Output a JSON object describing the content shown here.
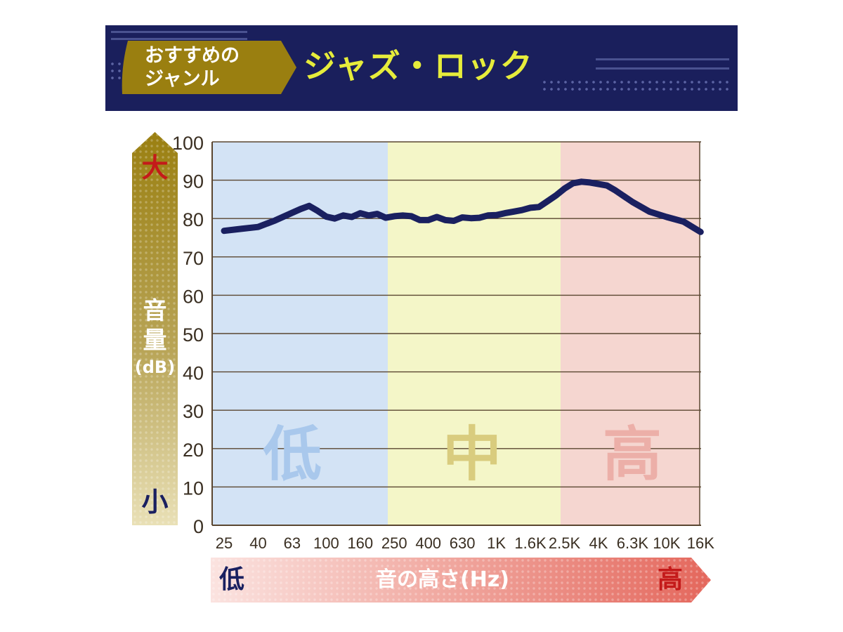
{
  "header": {
    "tag_line1": "おすすめの",
    "tag_line2": "ジャンル",
    "genre": "ジャズ・ロック"
  },
  "colors": {
    "banner": "#1a1f5c",
    "tag_gold": "#9a7f10",
    "genre_text": "#e6ec3b",
    "curve": "#1a2060",
    "band_low": "#d3e3f5",
    "band_mid": "#f4f6c8",
    "band_high": "#f5d6d0",
    "band_label_low": "#a9c8ec",
    "band_label_mid": "#d9cc7e",
    "band_label_high": "#ecafa8",
    "red_mark": "#c41a1a"
  },
  "y_axis": {
    "label": "音量",
    "unit": "(dB)",
    "top_marker": "大",
    "bottom_marker": "小"
  },
  "x_axis": {
    "label": "音の高さ(Hz)",
    "left_marker": "低",
    "right_marker": "高"
  },
  "chart_data": {
    "type": "line",
    "title": "",
    "xlabel": "音の高さ(Hz)",
    "ylabel": "音量(dB)",
    "ylim": [
      0,
      100
    ],
    "yticks": [
      0,
      10,
      20,
      30,
      40,
      50,
      60,
      70,
      80,
      90,
      100
    ],
    "grid": true,
    "categories": [
      "25",
      "40",
      "63",
      "100",
      "160",
      "250",
      "400",
      "630",
      "1K",
      "1.6K",
      "2.5K",
      "4K",
      "6.3K",
      "10K",
      "16K"
    ],
    "bands": [
      {
        "label": "低",
        "from": "25",
        "to": "250"
      },
      {
        "label": "中",
        "from": "250",
        "to": "2.5K"
      },
      {
        "label": "高",
        "from": "2.5K",
        "to": "16K"
      }
    ],
    "series": [
      {
        "x": [
          0,
          0.5,
          1,
          1.5,
          2,
          2.25,
          2.5,
          2.75,
          3,
          3.25,
          3.5,
          3.75,
          4,
          4.25,
          4.5,
          4.75,
          5,
          5.25,
          5.5,
          5.75,
          6,
          6.25,
          6.5,
          6.75,
          7,
          7.25,
          7.5,
          7.75,
          8,
          8.25,
          8.5,
          8.75,
          9,
          9.25,
          9.5,
          9.75,
          10,
          10.25,
          10.5,
          10.75,
          11,
          11.25,
          11.5,
          11.75,
          12,
          12.5,
          13,
          13.5,
          14
        ],
        "y": [
          76.8,
          77.3,
          77.8,
          79.5,
          81.5,
          82.5,
          83.3,
          82.0,
          80.5,
          80.0,
          80.8,
          80.4,
          81.4,
          80.8,
          81.2,
          80.2,
          80.6,
          80.8,
          80.6,
          79.6,
          79.6,
          80.4,
          79.6,
          79.4,
          80.3,
          80.1,
          80.2,
          80.8,
          80.9,
          81.4,
          81.8,
          82.2,
          82.8,
          83.0,
          84.5,
          86.0,
          87.8,
          89.2,
          89.6,
          89.4,
          89.0,
          88.6,
          87.3,
          85.8,
          84.3,
          81.8,
          80.4,
          79.2,
          76.5
        ]
      }
    ]
  }
}
